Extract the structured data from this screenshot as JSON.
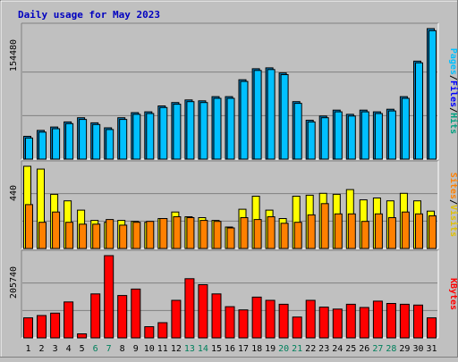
{
  "chart_data": {
    "type": "bar",
    "title": "Daily usage for May 2023",
    "categories": [
      "1",
      "2",
      "3",
      "4",
      "5",
      "6",
      "7",
      "8",
      "9",
      "10",
      "11",
      "12",
      "13",
      "14",
      "15",
      "16",
      "17",
      "18",
      "19",
      "20",
      "21",
      "22",
      "23",
      "24",
      "25",
      "26",
      "27",
      "28",
      "29",
      "30",
      "31"
    ],
    "weekend_days": [
      "6",
      "7",
      "13",
      "14",
      "20",
      "21",
      "27",
      "28"
    ],
    "panels": [
      {
        "id": "hits",
        "ymax_label": "154480",
        "ymax": 154480,
        "ylabel_parts": [
          {
            "text": "Pages",
            "color": "#00c0ff"
          },
          {
            "text": "/",
            "color": "#000000"
          },
          {
            "text": "Files",
            "color": "#0000ff"
          },
          {
            "text": "/",
            "color": "#000000"
          },
          {
            "text": "Hits",
            "color": "#00a080"
          }
        ],
        "series": [
          {
            "name": "Hits",
            "color": "#0080c0",
            "values": [
              27000,
              34000,
              38000,
              44000,
              49000,
              43000,
              37000,
              49000,
              55000,
              56000,
              63000,
              67000,
              70000,
              69000,
              74000,
              74000,
              94000,
              107000,
              108000,
              102000,
              68000,
              46000,
              51000,
              58000,
              53000,
              58000,
              56000,
              59000,
              74000,
              116000,
              154480
            ]
          },
          {
            "name": "Files",
            "color": "#00c0ff",
            "values": [
              25000,
              32000,
              36000,
              42000,
              47000,
              41000,
              35000,
              47000,
              53000,
              54000,
              61000,
              65000,
              68000,
              67000,
              72000,
              72000,
              92000,
              105000,
              106000,
              100000,
              66000,
              44000,
              49000,
              56000,
              51000,
              56000,
              54000,
              57000,
              72000,
              114000,
              152000
            ]
          }
        ]
      },
      {
        "id": "visits",
        "ymax_label": "440",
        "ymax": 440,
        "ylabel_parts": [
          {
            "text": "Sites",
            "color": "#ff8000"
          },
          {
            "text": "/",
            "color": "#000000"
          },
          {
            "text": "Visits",
            "color": "#e0c000"
          }
        ],
        "series": [
          {
            "name": "Visits",
            "color": "#ffff00",
            "values": [
              440,
              425,
              290,
              255,
              205,
              150,
              140,
              150,
              145,
              140,
              160,
              195,
              170,
              165,
              150,
              115,
              210,
              280,
              205,
              160,
              280,
              285,
              295,
              290,
              315,
              260,
              270,
              255,
              295,
              255,
              200
            ]
          },
          {
            "name": "Sites",
            "color": "#ff8000",
            "values": [
              235,
              140,
              195,
              140,
              130,
              130,
              155,
              125,
              140,
              145,
              160,
              170,
              165,
              150,
              145,
              110,
              165,
              155,
              170,
              135,
              140,
              180,
              240,
              185,
              185,
              145,
              185,
              165,
              195,
              185,
              175
            ]
          }
        ]
      },
      {
        "id": "kbytes",
        "ymax_label": "205740",
        "ymax": 205740,
        "ylabel_parts": [
          {
            "text": "KBytes",
            "color": "#ff0000"
          }
        ],
        "series": [
          {
            "name": "KBytes",
            "color": "#ff0000",
            "values": [
              50000,
              56000,
              62000,
              90000,
              10000,
              110000,
              205740,
              106000,
              122000,
              28000,
              38000,
              94000,
              148000,
              133000,
              110000,
              78000,
              70000,
              102000,
              94000,
              84000,
              52000,
              94000,
              77000,
              72000,
              84000,
              76000,
              92000,
              86000,
              84000,
              82000,
              50000
            ]
          }
        ]
      }
    ]
  }
}
